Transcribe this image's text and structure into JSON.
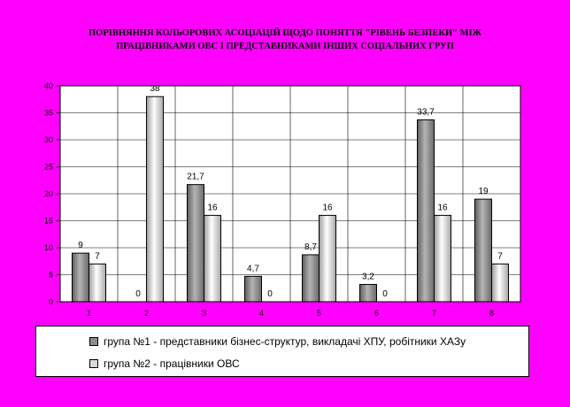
{
  "title_lines": [
    "ПОРІВНЯННЯ КОЛЬОРОВИХ АСОЦІАЦІЙ ЩОДО  ПОНЯТТЯ \"РІВЕНЬ БЕЗПЕКИ\" МІЖ",
    "ПРАЦІВНИКАМИ ОВС І ПРЕДСТАВНИКАМИ ІНШИХ СОЦІАЛЬНИХ ГРУП"
  ],
  "chart_data": {
    "type": "bar",
    "categories": [
      "1",
      "2",
      "3",
      "4",
      "5",
      "6",
      "7",
      "8"
    ],
    "series": [
      {
        "name": "група №1 - представники бізнес-структур, викладачі ХПУ, робітники ХАЗу",
        "values": [
          9,
          0,
          21.7,
          4.7,
          8.7,
          3.2,
          33.7,
          19
        ],
        "labels": [
          "9",
          "0",
          "21,7",
          "4,7",
          "8,7",
          "3,2",
          "33,7",
          "19"
        ],
        "color": "#8c8c8c"
      },
      {
        "name": "група №2 - працівники ОВС",
        "values": [
          7,
          38,
          16,
          0,
          16,
          0,
          16,
          7
        ],
        "labels": [
          "7",
          "38",
          "16",
          "0",
          "16",
          "0",
          "16",
          "7"
        ],
        "color": "#d9d9d9"
      }
    ],
    "ylim": [
      0,
      40
    ],
    "yticks": [
      0,
      5,
      10,
      15,
      20,
      25,
      30,
      35,
      40
    ],
    "grid": true,
    "legend_position": "bottom",
    "background": "#ff00ff",
    "plot_background": "#ffffff"
  }
}
